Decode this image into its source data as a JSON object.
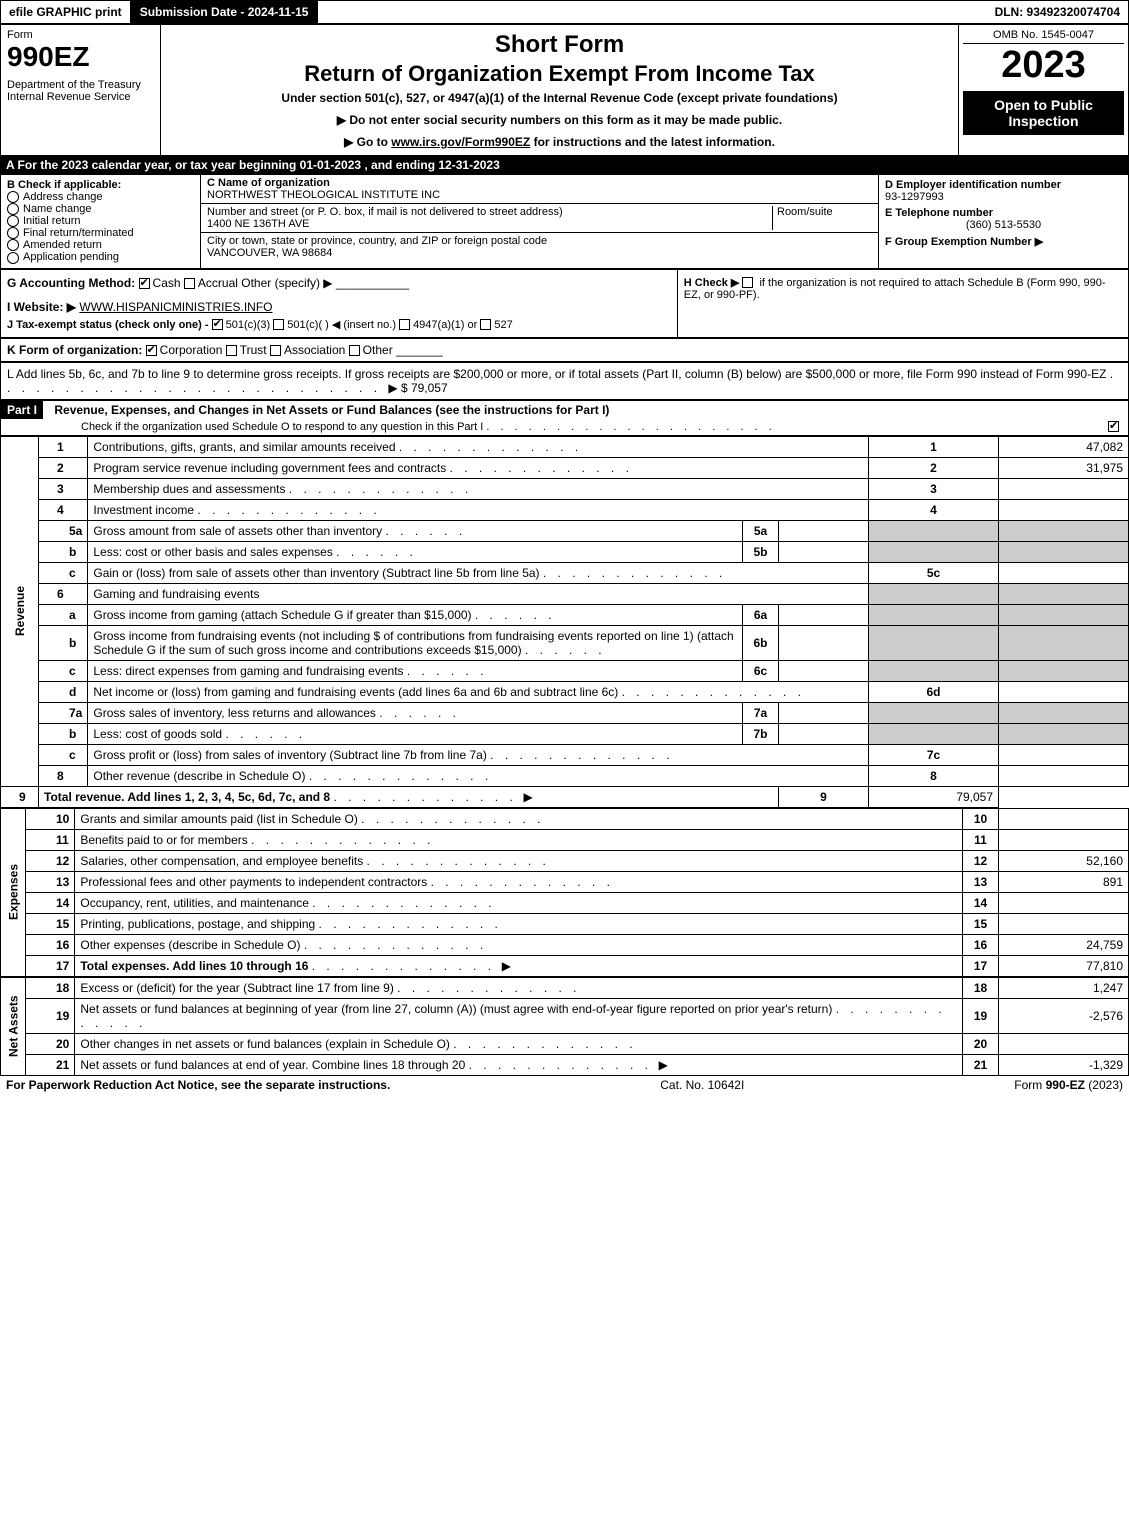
{
  "topbar": {
    "efile": "efile GRAPHIC print",
    "submission": "Submission Date - 2024-11-15",
    "dln": "DLN: 93492320074704"
  },
  "header": {
    "form_label": "Form",
    "form_no": "990EZ",
    "dept": "Department of the Treasury\nInternal Revenue Service",
    "short": "Short Form",
    "title": "Return of Organization Exempt From Income Tax",
    "subtitle": "Under section 501(c), 527, or 4947(a)(1) of the Internal Revenue Code (except private foundations)",
    "note1": "▶ Do not enter social security numbers on this form as it may be made public.",
    "note2_pre": "▶ Go to ",
    "note2_link": "www.irs.gov/Form990EZ",
    "note2_post": " for instructions and the latest information.",
    "omb": "OMB No. 1545-0047",
    "year": "2023",
    "open": "Open to Public Inspection"
  },
  "lineA": "A  For the 2023 calendar year, or tax year beginning 01-01-2023 , and ending 12-31-2023",
  "B": {
    "label": "B  Check if applicable:",
    "items": [
      "Address change",
      "Name change",
      "Initial return",
      "Final return/terminated",
      "Amended return",
      "Application pending"
    ]
  },
  "C": {
    "label": "C Name of organization",
    "name": "NORTHWEST THEOLOGICAL INSTITUTE INC",
    "street_label": "Number and street (or P. O. box, if mail is not delivered to street address)",
    "room_label": "Room/suite",
    "street": "1400 NE 136TH AVE",
    "city_label": "City or town, state or province, country, and ZIP or foreign postal code",
    "city": "VANCOUVER, WA  98684"
  },
  "D": {
    "label": "D Employer identification number",
    "value": "93-1297993"
  },
  "E": {
    "label": "E Telephone number",
    "value": "(360) 513-5530"
  },
  "F": {
    "label": "F Group Exemption Number  ▶"
  },
  "G": {
    "label": "G Accounting Method:",
    "cash": "Cash",
    "accrual": "Accrual",
    "other": "Other (specify) ▶"
  },
  "H": {
    "label": "H  Check ▶",
    "text": "if the organization is not required to attach Schedule B (Form 990, 990-EZ, or 990-PF)."
  },
  "I": {
    "label": "I Website: ▶",
    "value": "WWW.HISPANICMINISTRIES.INFO"
  },
  "J": {
    "label": "J Tax-exempt status (check only one) -",
    "opts": [
      "501(c)(3)",
      "501(c)(  ) ◀ (insert no.)",
      "4947(a)(1) or",
      "527"
    ]
  },
  "K": {
    "label": "K Form of organization:",
    "opts": [
      "Corporation",
      "Trust",
      "Association",
      "Other"
    ]
  },
  "L": {
    "text": "L Add lines 5b, 6c, and 7b to line 9 to determine gross receipts. If gross receipts are $200,000 or more, or if total assets (Part II, column (B) below) are $500,000 or more, file Form 990 instead of Form 990-EZ",
    "amount": "▶ $ 79,057"
  },
  "part1": {
    "label": "Part I",
    "title": "Revenue, Expenses, and Changes in Net Assets or Fund Balances (see the instructions for Part I)",
    "check": "Check if the organization used Schedule O to respond to any question in this Part I"
  },
  "sections": {
    "revenue": "Revenue",
    "expenses": "Expenses",
    "netassets": "Net Assets"
  },
  "lines": [
    {
      "n": "1",
      "d": "Contributions, gifts, grants, and similar amounts received",
      "box": "1",
      "amt": "47,082"
    },
    {
      "n": "2",
      "d": "Program service revenue including government fees and contracts",
      "box": "2",
      "amt": "31,975"
    },
    {
      "n": "3",
      "d": "Membership dues and assessments",
      "box": "3",
      "amt": ""
    },
    {
      "n": "4",
      "d": "Investment income",
      "box": "4",
      "amt": ""
    },
    {
      "n": "5a",
      "d": "Gross amount from sale of assets other than inventory",
      "ibox": "5a",
      "shade": true
    },
    {
      "n": "b",
      "d": "Less: cost or other basis and sales expenses",
      "ibox": "5b",
      "shade": true
    },
    {
      "n": "c",
      "d": "Gain or (loss) from sale of assets other than inventory (Subtract line 5b from line 5a)",
      "box": "5c",
      "amt": ""
    },
    {
      "n": "6",
      "d": "Gaming and fundraising events",
      "shade": true,
      "noline": true
    },
    {
      "n": "a",
      "d": "Gross income from gaming (attach Schedule G if greater than $15,000)",
      "ibox": "6a",
      "shade": true
    },
    {
      "n": "b",
      "d": "Gross income from fundraising events (not including $                      of contributions from fundraising events reported on line 1) (attach Schedule G if the sum of such gross income and contributions exceeds $15,000)",
      "ibox": "6b",
      "shade": true
    },
    {
      "n": "c",
      "d": "Less: direct expenses from gaming and fundraising events",
      "ibox": "6c",
      "shade": true
    },
    {
      "n": "d",
      "d": "Net income or (loss) from gaming and fundraising events (add lines 6a and 6b and subtract line 6c)",
      "box": "6d",
      "amt": ""
    },
    {
      "n": "7a",
      "d": "Gross sales of inventory, less returns and allowances",
      "ibox": "7a",
      "shade": true
    },
    {
      "n": "b",
      "d": "Less: cost of goods sold",
      "ibox": "7b",
      "shade": true
    },
    {
      "n": "c",
      "d": "Gross profit or (loss) from sales of inventory (Subtract line 7b from line 7a)",
      "box": "7c",
      "amt": ""
    },
    {
      "n": "8",
      "d": "Other revenue (describe in Schedule O)",
      "box": "8",
      "amt": ""
    },
    {
      "n": "9",
      "d": "Total revenue. Add lines 1, 2, 3, 4, 5c, 6d, 7c, and 8",
      "box": "9",
      "amt": "79,057",
      "bold": true,
      "arrow": true
    }
  ],
  "exp_lines": [
    {
      "n": "10",
      "d": "Grants and similar amounts paid (list in Schedule O)",
      "box": "10",
      "amt": ""
    },
    {
      "n": "11",
      "d": "Benefits paid to or for members",
      "box": "11",
      "amt": ""
    },
    {
      "n": "12",
      "d": "Salaries, other compensation, and employee benefits",
      "box": "12",
      "amt": "52,160"
    },
    {
      "n": "13",
      "d": "Professional fees and other payments to independent contractors",
      "box": "13",
      "amt": "891"
    },
    {
      "n": "14",
      "d": "Occupancy, rent, utilities, and maintenance",
      "box": "14",
      "amt": ""
    },
    {
      "n": "15",
      "d": "Printing, publications, postage, and shipping",
      "box": "15",
      "amt": ""
    },
    {
      "n": "16",
      "d": "Other expenses (describe in Schedule O)",
      "box": "16",
      "amt": "24,759"
    },
    {
      "n": "17",
      "d": "Total expenses. Add lines 10 through 16",
      "box": "17",
      "amt": "77,810",
      "bold": true,
      "arrow": true
    }
  ],
  "na_lines": [
    {
      "n": "18",
      "d": "Excess or (deficit) for the year (Subtract line 17 from line 9)",
      "box": "18",
      "amt": "1,247"
    },
    {
      "n": "19",
      "d": "Net assets or fund balances at beginning of year (from line 27, column (A)) (must agree with end-of-year figure reported on prior year's return)",
      "box": "19",
      "amt": "-2,576"
    },
    {
      "n": "20",
      "d": "Other changes in net assets or fund balances (explain in Schedule O)",
      "box": "20",
      "amt": ""
    },
    {
      "n": "21",
      "d": "Net assets or fund balances at end of year. Combine lines 18 through 20",
      "box": "21",
      "amt": "-1,329",
      "arrow": true
    }
  ],
  "footer": {
    "left": "For Paperwork Reduction Act Notice, see the separate instructions.",
    "mid": "Cat. No. 10642I",
    "right_pre": "Form ",
    "right_b": "990-EZ",
    "right_post": " (2023)"
  }
}
